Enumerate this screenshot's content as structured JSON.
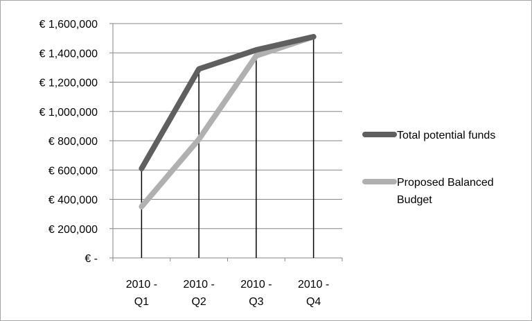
{
  "chart_data": {
    "type": "line",
    "title": "",
    "xlabel": "",
    "ylabel": "",
    "categories": [
      [
        "2010 -",
        "Q1"
      ],
      [
        "2010 -",
        "Q2"
      ],
      [
        "2010 -",
        "Q3"
      ],
      [
        "2010 -",
        "Q4"
      ]
    ],
    "ylim": [
      0,
      1600000
    ],
    "yticks": [
      {
        "value": 0,
        "label": "€ -"
      },
      {
        "value": 200000,
        "label": "€ 200,000"
      },
      {
        "value": 400000,
        "label": "€ 400,000"
      },
      {
        "value": 600000,
        "label": "€ 600,000"
      },
      {
        "value": 800000,
        "label": "€ 800,000"
      },
      {
        "value": 1000000,
        "label": "€ 1,000,000"
      },
      {
        "value": 1200000,
        "label": "€ 1,200,000"
      },
      {
        "value": 1400000,
        "label": "€ 1,400,000"
      },
      {
        "value": 1600000,
        "label": "€ 1,600,000"
      }
    ],
    "grid": true,
    "drop_lines": true,
    "legend_position": "right",
    "series": [
      {
        "name": [
          "Total potential funds"
        ],
        "color": "#5f5f5f",
        "values": [
          610000,
          1290000,
          1420000,
          1510000
        ]
      },
      {
        "name": [
          "Proposed Balanced",
          "Budget"
        ],
        "color": "#b0b0b0",
        "values": [
          350000,
          810000,
          1380000,
          1510000
        ]
      }
    ]
  }
}
